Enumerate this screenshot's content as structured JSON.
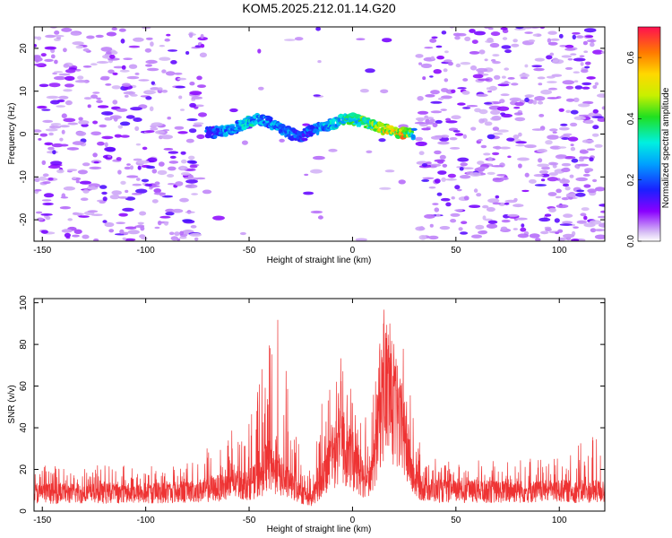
{
  "chart_data": [
    {
      "type": "heatmap",
      "title": "KOM5.2025.212.01.14.G20",
      "xlabel": "Height of straight line (km)",
      "ylabel": "Frequency (Hz)",
      "xlim": [
        -154,
        122
      ],
      "ylim": [
        -25,
        25
      ],
      "x_ticks": [
        -150,
        -100,
        -50,
        0,
        50,
        100
      ],
      "y_ticks": [
        -20,
        -10,
        0,
        10,
        20
      ],
      "x_tick_labels": [
        "-150",
        "-100",
        "-50",
        "0",
        "50",
        "100"
      ],
      "y_tick_labels": [
        "-20",
        "-10",
        "0",
        "10",
        "20"
      ],
      "grid": false,
      "colorbar": {
        "label": "Normalized spectral amplitude",
        "range": [
          0.0,
          0.7
        ],
        "ticks": [
          0.0,
          0.2,
          0.4,
          0.6
        ],
        "tick_labels": [
          "0.0",
          "0.2",
          "0.4",
          "0.6"
        ]
      },
      "signal_track": {
        "x": [
          -70,
          -65,
          -60,
          -55,
          -50,
          -45,
          -40,
          -35,
          -30,
          -25,
          -20,
          -15,
          -10,
          -5,
          0,
          5,
          10,
          15,
          20,
          25,
          30
        ],
        "freq": [
          0.2,
          0.5,
          1.0,
          1.8,
          3.0,
          3.4,
          2.6,
          1.2,
          0.2,
          -0.8,
          0.9,
          1.6,
          2.4,
          3.3,
          3.5,
          3.0,
          2.0,
          1.2,
          0.6,
          0.2,
          0.1
        ],
        "amplitude": [
          0.22,
          0.25,
          0.3,
          0.3,
          0.35,
          0.32,
          0.28,
          0.3,
          0.27,
          0.2,
          0.25,
          0.3,
          0.35,
          0.4,
          0.42,
          0.45,
          0.5,
          0.55,
          0.6,
          0.65,
          0.35
        ]
      },
      "gap_regions_x": [
        [
          -72,
          -18
        ],
        [
          -16,
          32
        ]
      ],
      "noise_level": 0.06
    },
    {
      "type": "line",
      "title": "",
      "xlabel": "Height of straight line (km)",
      "ylabel": "SNR (v/v)",
      "xlim": [
        -154,
        122
      ],
      "ylim": [
        0,
        102
      ],
      "x_ticks": [
        -150,
        -100,
        -50,
        0,
        50,
        100
      ],
      "y_ticks": [
        0,
        20,
        40,
        60,
        80,
        100
      ],
      "x_tick_labels": [
        "-150",
        "-100",
        "-50",
        "0",
        "50",
        "100"
      ],
      "y_tick_labels": [
        "0",
        "20",
        "40",
        "60",
        "80",
        "100"
      ],
      "grid": false,
      "series_color": "#ee3333",
      "envelope": {
        "x": [
          -154,
          -100,
          -80,
          -70,
          -60,
          -50,
          -45,
          -40,
          -35,
          -30,
          -25,
          -20,
          -15,
          -10,
          -5,
          0,
          5,
          10,
          13,
          16,
          20,
          25,
          30,
          35,
          50,
          100,
          122
        ],
        "base": [
          10,
          10,
          11,
          12,
          14,
          15,
          18,
          26,
          20,
          14,
          10,
          6,
          18,
          28,
          36,
          28,
          18,
          22,
          55,
          70,
          58,
          40,
          18,
          12,
          11,
          11,
          11
        ],
        "peak": [
          22,
          22,
          24,
          32,
          38,
          44,
          62,
          90,
          96,
          48,
          32,
          20,
          52,
          70,
          74,
          62,
          46,
          62,
          96,
          102,
          92,
          80,
          40,
          26,
          24,
          26,
          40
        ]
      }
    }
  ]
}
